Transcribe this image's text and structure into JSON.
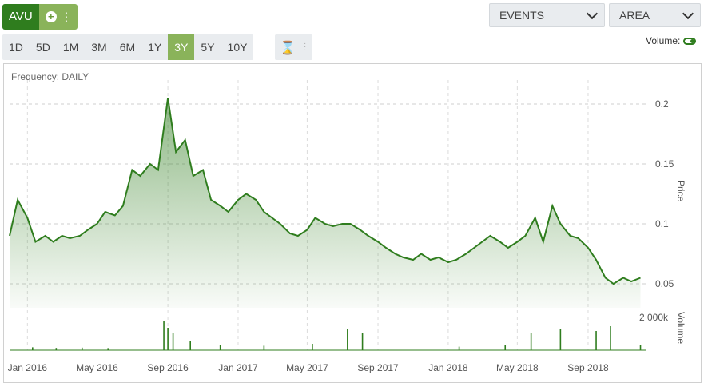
{
  "ticker": {
    "symbol": "AVU"
  },
  "events_label": "EVENTS",
  "chart_style_label": "AREA",
  "ranges": [
    "1D",
    "5D",
    "1M",
    "3M",
    "6M",
    "1Y",
    "3Y",
    "5Y",
    "10Y"
  ],
  "active_range": "3Y",
  "volume_toggle": {
    "label": "Volume:",
    "on": true
  },
  "frequency_label": "Frequency: DAILY",
  "colors": {
    "accent": "#2f7d1e",
    "light_accent": "#8ab35a"
  },
  "chart_data": {
    "type": "area",
    "price_series": {
      "x": [
        "2015-12-01",
        "2015-12-15",
        "2016-01-01",
        "2016-01-15",
        "2016-02-01",
        "2016-02-15",
        "2016-03-01",
        "2016-03-15",
        "2016-04-01",
        "2016-04-15",
        "2016-05-01",
        "2016-05-15",
        "2016-06-01",
        "2016-06-15",
        "2016-07-01",
        "2016-07-15",
        "2016-08-01",
        "2016-08-15",
        "2016-09-01",
        "2016-09-15",
        "2016-10-01",
        "2016-10-15",
        "2016-11-01",
        "2016-11-15",
        "2016-12-01",
        "2016-12-15",
        "2017-01-01",
        "2017-01-15",
        "2017-02-01",
        "2017-02-15",
        "2017-03-01",
        "2017-03-15",
        "2017-04-01",
        "2017-04-15",
        "2017-05-01",
        "2017-05-15",
        "2017-06-01",
        "2017-06-15",
        "2017-07-01",
        "2017-07-15",
        "2017-08-01",
        "2017-08-15",
        "2017-09-01",
        "2017-09-15",
        "2017-10-01",
        "2017-10-15",
        "2017-11-01",
        "2017-11-15",
        "2017-12-01",
        "2017-12-15",
        "2018-01-01",
        "2018-01-15",
        "2018-02-01",
        "2018-02-15",
        "2018-03-01",
        "2018-03-15",
        "2018-04-01",
        "2018-04-15",
        "2018-05-01",
        "2018-05-15",
        "2018-06-01",
        "2018-06-15",
        "2018-07-01",
        "2018-07-15",
        "2018-08-01",
        "2018-08-15",
        "2018-09-01",
        "2018-09-15",
        "2018-10-01",
        "2018-10-15",
        "2018-11-01",
        "2018-11-15",
        "2018-12-01"
      ],
      "y": [
        0.09,
        0.12,
        0.105,
        0.085,
        0.09,
        0.085,
        0.09,
        0.088,
        0.09,
        0.095,
        0.1,
        0.11,
        0.107,
        0.115,
        0.145,
        0.14,
        0.15,
        0.145,
        0.205,
        0.16,
        0.17,
        0.14,
        0.145,
        0.12,
        0.115,
        0.11,
        0.12,
        0.125,
        0.12,
        0.11,
        0.105,
        0.1,
        0.092,
        0.09,
        0.095,
        0.105,
        0.1,
        0.098,
        0.1,
        0.1,
        0.095,
        0.09,
        0.085,
        0.08,
        0.075,
        0.072,
        0.07,
        0.075,
        0.07,
        0.072,
        0.068,
        0.07,
        0.075,
        0.08,
        0.085,
        0.09,
        0.085,
        0.08,
        0.085,
        0.09,
        0.105,
        0.085,
        0.115,
        0.1,
        0.09,
        0.088,
        0.08,
        0.07,
        0.055,
        0.05,
        0.055,
        0.052,
        0.055
      ]
    },
    "volume_series": {
      "x": [
        "2016-01-10",
        "2016-02-20",
        "2016-04-05",
        "2016-05-20",
        "2016-08-25",
        "2016-09-01",
        "2016-09-10",
        "2016-10-10",
        "2016-12-01",
        "2017-02-15",
        "2017-05-10",
        "2017-07-10",
        "2017-08-05",
        "2018-01-20",
        "2018-04-10",
        "2018-05-25",
        "2018-07-15",
        "2018-09-15",
        "2018-10-10",
        "2018-12-01"
      ],
      "y": [
        180,
        140,
        160,
        130,
        1800,
        1400,
        1100,
        600,
        300,
        280,
        400,
        1300,
        1050,
        220,
        350,
        1050,
        1300,
        1200,
        1500,
        300
      ]
    },
    "x_tick_labels": [
      "Jan 2016",
      "May 2016",
      "Sep 2016",
      "Jan 2017",
      "May 2017",
      "Sep 2017",
      "Jan 2018",
      "May 2018",
      "Sep 2018"
    ],
    "y_tick_labels": [
      "0.2",
      "0.15",
      "0.1",
      "0.05"
    ],
    "volume_tick_label": "2 000k",
    "y_axis_label": "Price",
    "volume_axis_label": "Volume",
    "ylim": [
      0.03,
      0.22
    ],
    "volume_max": 2000,
    "xlim": [
      "2015-12-01",
      "2018-12-10"
    ]
  }
}
